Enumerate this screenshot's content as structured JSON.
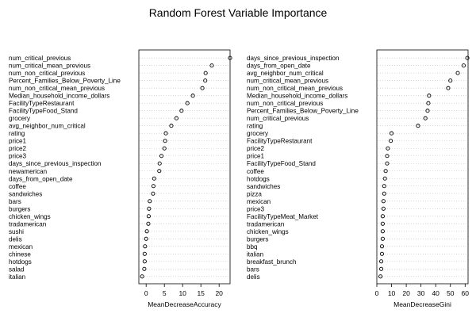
{
  "title": "Random Forest Variable Importance",
  "chart_data": [
    {
      "type": "dotchart",
      "xlabel": "MeanDecreaseAccuracy",
      "xlim": [
        -2,
        23
      ],
      "xticks": [
        0,
        5,
        10,
        15,
        20
      ],
      "grid": "dotted horizontal guide lines",
      "labels": [
        "num_critical_previous",
        "num_critical_mean_previous",
        "num_non_critical_previous",
        "Percent_Families_Below_Poverty_Line",
        "num_non_critical_mean_previous",
        "Median_household_income_dollars",
        "FacilityTypeRestaurant",
        "FacilityTypeFood_Stand",
        "grocery",
        "avg_neighbor_num_critical",
        "rating",
        "price1",
        "price2",
        "price3",
        "days_since_previous_inspection",
        "newamerican",
        "days_from_open_date",
        "coffee",
        "sandwiches",
        "bars",
        "burgers",
        "chicken_wings",
        "tradamerican",
        "sushi",
        "delis",
        "mexican",
        "chinese",
        "hotdogs",
        "salad",
        "italian"
      ],
      "values": [
        23.0,
        18.0,
        16.3,
        16.2,
        15.4,
        12.8,
        11.3,
        9.7,
        8.3,
        6.9,
        5.4,
        5.2,
        5.0,
        4.2,
        3.7,
        3.6,
        2.2,
        2.0,
        1.9,
        1.0,
        0.8,
        0.7,
        0.6,
        0.2,
        0.0,
        -0.3,
        -0.4,
        -0.4,
        -0.5,
        -1.1
      ]
    },
    {
      "type": "dotchart",
      "xlabel": "MeanDecreaseGini",
      "xlim": [
        0,
        62
      ],
      "xticks": [
        0,
        10,
        20,
        30,
        40,
        50,
        60
      ],
      "grid": "dotted horizontal guide lines",
      "labels": [
        "days_since_previous_inspection",
        "days_from_open_date",
        "avg_neighbor_num_critical",
        "num_critical_mean_previous",
        "num_non_critical_mean_previous",
        "Median_household_income_dollars",
        "num_non_critical_previous",
        "Percent_Families_Below_Poverty_Line",
        "num_critical_previous",
        "rating",
        "grocery",
        "FacilityTypeRestaurant",
        "price2",
        "price1",
        "FacilityTypeFood_Stand",
        "coffee",
        "hotdogs",
        "sandwiches",
        "pizza",
        "mexican",
        "price3",
        "FacilityTypeMeat_Market",
        "tradamerican",
        "chicken_wings",
        "burgers",
        "bbq",
        "italian",
        "breakfast_brunch",
        "bars",
        "delis"
      ],
      "values": [
        61.5,
        59.0,
        55.0,
        50.0,
        48.5,
        35.5,
        35.0,
        34.5,
        33.0,
        28.0,
        10.0,
        9.5,
        7.5,
        7.0,
        7.0,
        6.0,
        5.5,
        5.0,
        5.0,
        4.5,
        4.5,
        4.0,
        4.0,
        4.0,
        4.0,
        3.5,
        3.5,
        3.0,
        3.0,
        2.5
      ]
    }
  ]
}
